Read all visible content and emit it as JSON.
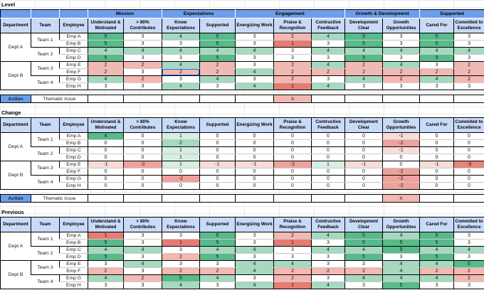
{
  "columns": {
    "id_headers": [
      "Department",
      "Team",
      "Employee"
    ],
    "groups": [
      {
        "label": "Mission",
        "span": 2
      },
      {
        "label": "Expectations",
        "span": 2
      },
      {
        "label": "Engagement",
        "span": 3
      },
      {
        "label": "Growth & Development",
        "span": 2
      },
      {
        "label": "Supported",
        "span": 2
      }
    ],
    "metric_headers": [
      "Understand & Motivated",
      "> 80% Contributes",
      "Know Expectations",
      "Supported",
      "Energizing Work",
      "Praise & Recognition",
      "Contructive Feedback",
      "Development Clear",
      "Growth Opportunities",
      "Cared For",
      "Commited to Excellence"
    ]
  },
  "org": {
    "departments": [
      "Dept A",
      "Dept B"
    ],
    "teams": [
      "Team 1",
      "Team 2",
      "Team 3",
      "Team 4"
    ],
    "employees": [
      "Emp A",
      "Emp B",
      "Emp C",
      "Emp D",
      "Emp E",
      "Emp F",
      "Emp G",
      "Emp H"
    ]
  },
  "sections": [
    {
      "key": "level",
      "label": "Level",
      "has_group_row": true,
      "scale": "level",
      "values": [
        [
          5,
          3,
          4,
          5,
          3,
          2,
          4,
          5,
          3,
          5,
          3
        ],
        [
          5,
          3,
          3,
          5,
          3,
          1,
          3,
          5,
          3,
          5,
          3
        ],
        [
          4,
          4,
          4,
          4,
          4,
          3,
          4,
          4,
          4,
          4,
          4
        ],
        [
          5,
          3,
          3,
          5,
          3,
          3,
          3,
          5,
          3,
          5,
          3
        ],
        [
          2,
          2,
          4,
          2,
          3,
          2,
          4,
          2,
          4,
          3,
          2
        ],
        [
          2,
          3,
          2,
          2,
          4,
          2,
          2,
          2,
          2,
          2,
          2
        ],
        [
          4,
          2,
          3,
          4,
          3,
          2,
          3,
          4,
          2,
          4,
          2
        ],
        [
          3,
          3,
          4,
          3,
          4,
          1,
          4,
          3,
          3,
          3,
          3
        ]
      ],
      "action": {
        "label": "Action",
        "issue": "Thematic Issue",
        "mark": "X",
        "mark_col": 5
      }
    },
    {
      "key": "change",
      "label": "Change",
      "has_group_row": false,
      "scale": "change",
      "values": [
        [
          4,
          0,
          1,
          0,
          0,
          0,
          0,
          0,
          -1,
          0,
          0
        ],
        [
          0,
          0,
          2,
          0,
          0,
          0,
          0,
          0,
          -2,
          0,
          0
        ],
        [
          0,
          0,
          1,
          0,
          0,
          0,
          0,
          0,
          -1,
          0,
          0
        ],
        [
          0,
          0,
          1,
          0,
          0,
          0,
          0,
          0,
          0,
          0,
          0
        ],
        [
          -1,
          -2,
          1,
          -1,
          -1,
          -2,
          1,
          -1,
          0,
          -1,
          -3
        ],
        [
          0,
          0,
          0,
          0,
          0,
          0,
          0,
          0,
          -2,
          0,
          0
        ],
        [
          0,
          0,
          -2,
          0,
          0,
          0,
          0,
          0,
          -2,
          0,
          0
        ],
        [
          0,
          0,
          0,
          0,
          0,
          0,
          0,
          0,
          -2,
          0,
          0
        ]
      ],
      "action": {
        "label": "Action",
        "issue": "Thematic Issue",
        "mark": "X",
        "mark_col": 8
      }
    },
    {
      "key": "previous",
      "label": "Previous",
      "has_group_row": false,
      "scale": "level",
      "values": [
        [
          1,
          3,
          3,
          5,
          3,
          2,
          4,
          5,
          4,
          5,
          3
        ],
        [
          5,
          3,
          1,
          5,
          3,
          1,
          3,
          5,
          5,
          5,
          3
        ],
        [
          4,
          4,
          3,
          4,
          4,
          3,
          4,
          4,
          5,
          4,
          4
        ],
        [
          5,
          3,
          2,
          5,
          3,
          3,
          3,
          5,
          3,
          5,
          3
        ],
        [
          3,
          4,
          3,
          3,
          4,
          4,
          3,
          3,
          4,
          4,
          5
        ],
        [
          2,
          3,
          2,
          2,
          4,
          2,
          2,
          2,
          4,
          2,
          2
        ],
        [
          4,
          2,
          5,
          4,
          3,
          2,
          3,
          4,
          4,
          4,
          2
        ],
        [
          3,
          3,
          4,
          3,
          4,
          1,
          4,
          3,
          5,
          3,
          3
        ]
      ],
      "action": null
    }
  ],
  "selection": {
    "section": "level",
    "row": 5,
    "col": 2,
    "value": 2
  },
  "colors": {
    "header_dark": "#6d9eeb",
    "header_light": "#c9daf8",
    "selection_blue": "#1a73e8",
    "scales": {
      "level": {
        "1": "#e67c73",
        "2": "#f3b8b1",
        "3": "#ffffff",
        "4": "#a5d9c0",
        "5": "#57bb8a"
      },
      "change": {
        "-3": "#e8857b",
        "-2": "#efa29b",
        "-1": "#f9dcd8",
        "0": "#ffffff",
        "1": "#d7eee2",
        "2": "#a5d9c0",
        "3": "#7fcaa5",
        "4": "#57bb8a"
      }
    }
  }
}
